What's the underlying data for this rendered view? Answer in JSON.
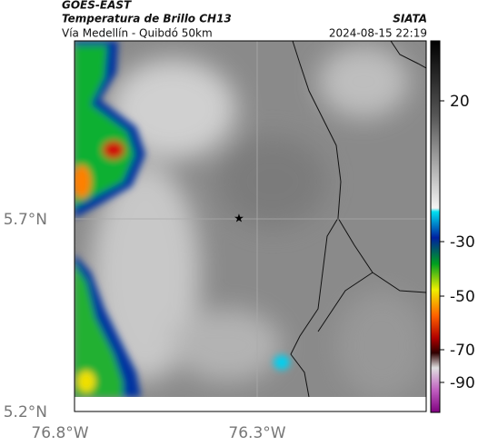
{
  "header": {
    "title": "GOES-EAST",
    "subtitle": "Temperatura de Brillo CH13",
    "location": "Vía Medellín - Quibdó 50km",
    "source": "SIATA",
    "timestamp": "2024-08-15 22:19"
  },
  "axes": {
    "lat_labels": [
      "5.7°N",
      "5.2°N"
    ],
    "lon_labels": [
      "76.8°W",
      "76.3°W"
    ]
  },
  "colorbar": {
    "ticks": [
      20,
      -30,
      -50,
      -70,
      -90
    ]
  }
}
